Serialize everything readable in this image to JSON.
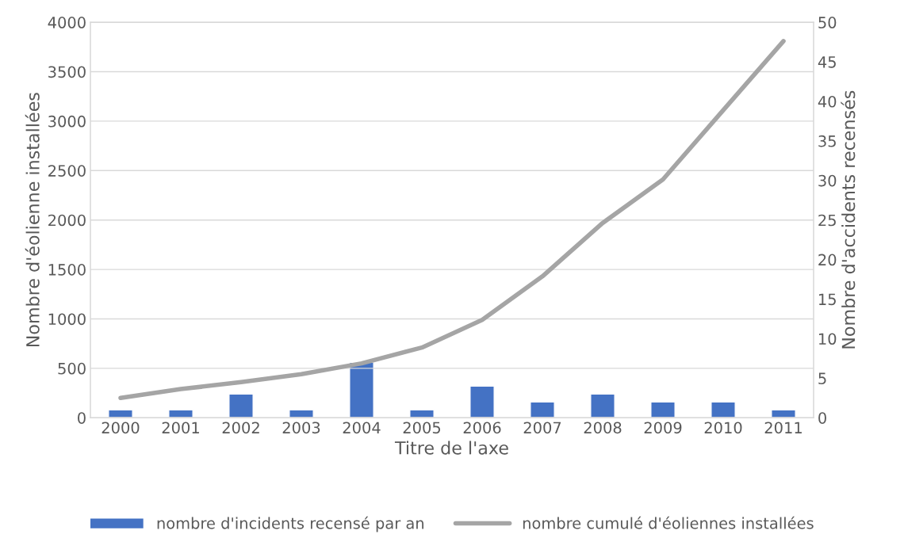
{
  "chart_data": {
    "type": "bar",
    "xlabel": "Titre de l'axe",
    "ylabel": "Nombre d'éolienne installées",
    "y2label": "Nombre d'accidents recensés",
    "categories": [
      "2000",
      "2001",
      "2002",
      "2003",
      "2004",
      "2005",
      "2006",
      "2007",
      "2008",
      "2009",
      "2010",
      "2011"
    ],
    "series": [
      {
        "name": "nombre d'incidents recensé par an",
        "axis": "y2",
        "color": "#4472c4",
        "values": [
          1,
          1,
          3,
          1,
          7,
          1,
          4,
          2,
          3,
          2,
          2,
          1
        ]
      },
      {
        "name": "nombre cumulé d'éoliennes installées",
        "type": "line",
        "axis": "y",
        "color": "#a5a5a5",
        "values": [
          200,
          290,
          360,
          440,
          550,
          710,
          990,
          1430,
          1970,
          2410,
          3110,
          3810
        ]
      }
    ],
    "ylim": [
      0,
      4000
    ],
    "yticks": [
      0,
      500,
      1000,
      1500,
      2000,
      2500,
      3000,
      3500,
      4000
    ],
    "y2lim": [
      0,
      50
    ],
    "y2ticks": [
      0,
      5,
      10,
      15,
      20,
      25,
      30,
      35,
      40,
      45,
      50
    ],
    "grid": "y",
    "legend": "bottom",
    "marker": "none",
    "line_style": "solid"
  }
}
